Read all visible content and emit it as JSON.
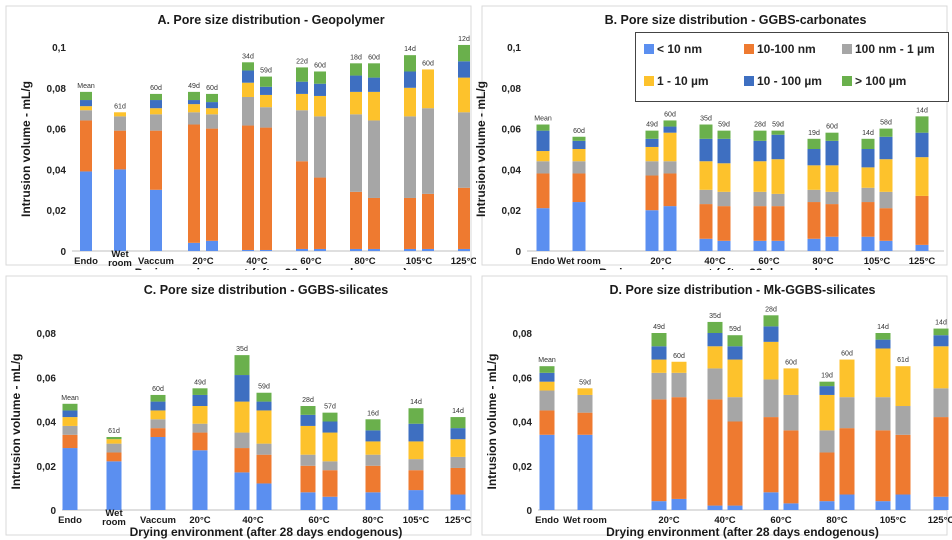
{
  "colors": {
    "lt10nm": "#5b8ff0",
    "10_100nm": "#ee7a30",
    "100nm_1um": "#a6a6a6",
    "1_10um": "#fdc22c",
    "10_100um": "#3e6fc1",
    "gt100um": "#6ab04c"
  },
  "legend": {
    "items": [
      {
        "key": "lt10nm",
        "label": "< 10 nm"
      },
      {
        "key": "10_100nm",
        "label": "10-100 nm"
      },
      {
        "key": "100nm_1um",
        "label": "100 nm - 1 µm"
      },
      {
        "key": "1_10um",
        "label": "1 - 10 µm"
      },
      {
        "key": "10_100um",
        "label": "10 - 100 µm"
      },
      {
        "key": "gt100um",
        "label": "> 100 µm"
      }
    ]
  },
  "chart_data": [
    {
      "type": "bar",
      "title": "A. Pore size distribution - Geopolymer",
      "xlabel": "Drying environment (after 28 days endogenous)",
      "ylabel": "Intrusion volume - mL/g",
      "ylim": [
        0,
        0.1
      ],
      "yticks": [
        "0",
        "0,02",
        "0,04",
        "0,06",
        "0,08",
        "0,1"
      ],
      "stacked": true,
      "groups": [
        {
          "label": "Endo",
          "bars": [
            {
              "label": "Mean",
              "values": [
                0.039,
                0.025,
                0.005,
                0.002,
                0.003,
                0.004
              ]
            }
          ]
        },
        {
          "label": "Wet\nroom",
          "bars": [
            {
              "label": "61d",
              "values": [
                0.04,
                0.019,
                0.007,
                0.002,
                0.0,
                0.0
              ]
            }
          ]
        },
        {
          "label": "Vaccum",
          "bars": [
            {
              "label": "60d",
              "values": [
                0.03,
                0.029,
                0.008,
                0.003,
                0.004,
                0.003
              ]
            }
          ]
        },
        {
          "label": "20°C",
          "bars": [
            {
              "label": "49d",
              "values": [
                0.004,
                0.058,
                0.006,
                0.004,
                0.002,
                0.004
              ]
            },
            {
              "label": "60d",
              "values": [
                0.005,
                0.055,
                0.007,
                0.003,
                0.003,
                0.004
              ]
            }
          ]
        },
        {
          "label": "40°C",
          "bars": [
            {
              "label": "34d",
              "values": [
                0.0005,
                0.061,
                0.014,
                0.007,
                0.006,
                0.004
              ]
            },
            {
              "label": "59d",
              "values": [
                0.0005,
                0.06,
                0.01,
                0.006,
                0.004,
                0.005
              ]
            }
          ]
        },
        {
          "label": "60°C",
          "bars": [
            {
              "label": "22d",
              "values": [
                0.001,
                0.043,
                0.025,
                0.008,
                0.006,
                0.007
              ]
            },
            {
              "label": "60d",
              "values": [
                0.001,
                0.035,
                0.03,
                0.01,
                0.006,
                0.006
              ]
            }
          ]
        },
        {
          "label": "80°C",
          "bars": [
            {
              "label": "18d",
              "values": [
                0.001,
                0.028,
                0.038,
                0.011,
                0.008,
                0.006
              ]
            },
            {
              "label": "60d",
              "values": [
                0.001,
                0.025,
                0.038,
                0.014,
                0.007,
                0.007
              ]
            }
          ]
        },
        {
          "label": "105°C",
          "bars": [
            {
              "label": "14d",
              "values": [
                0.001,
                0.025,
                0.04,
                0.014,
                0.008,
                0.008
              ]
            },
            {
              "label": "60d",
              "values": [
                0.001,
                0.027,
                0.042,
                0.019,
                0.0,
                0.0
              ]
            }
          ]
        },
        {
          "label": "125°C",
          "bars": [
            {
              "label": "12d",
              "values": [
                0.001,
                0.03,
                0.037,
                0.017,
                0.008,
                0.008
              ]
            }
          ]
        }
      ]
    },
    {
      "type": "bar",
      "title": "B. Pore size distribution - GGBS-carbonates",
      "xlabel": "Drying environment (after 28 days endogenous)",
      "ylabel": "Intrusion volume - mL/g",
      "ylim": [
        0,
        0.1
      ],
      "yticks": [
        "0",
        "0,02",
        "0,04",
        "0,06",
        "0,08",
        "0,1"
      ],
      "stacked": true,
      "groups": [
        {
          "label": "Endo",
          "bars": [
            {
              "label": "Mean",
              "values": [
                0.021,
                0.017,
                0.006,
                0.005,
                0.01,
                0.003
              ]
            }
          ]
        },
        {
          "label": "Wet room",
          "bars": [
            {
              "label": "60d",
              "values": [
                0.024,
                0.014,
                0.006,
                0.006,
                0.004,
                0.002
              ]
            }
          ]
        },
        {
          "label": "20°C",
          "bars": [
            {
              "label": "49d",
              "values": [
                0.02,
                0.017,
                0.007,
                0.007,
                0.004,
                0.004
              ]
            },
            {
              "label": "60d",
              "values": [
                0.022,
                0.016,
                0.006,
                0.014,
                0.003,
                0.003
              ]
            }
          ]
        },
        {
          "label": "40°C",
          "bars": [
            {
              "label": "35d",
              "values": [
                0.006,
                0.017,
                0.007,
                0.014,
                0.011,
                0.007
              ]
            },
            {
              "label": "59d",
              "values": [
                0.005,
                0.017,
                0.007,
                0.014,
                0.012,
                0.004
              ]
            }
          ]
        },
        {
          "label": "60°C",
          "bars": [
            {
              "label": "28d",
              "values": [
                0.005,
                0.017,
                0.007,
                0.015,
                0.01,
                0.005
              ]
            },
            {
              "label": "59d",
              "values": [
                0.005,
                0.017,
                0.006,
                0.017,
                0.012,
                0.002
              ]
            }
          ]
        },
        {
          "label": "80°C",
          "bars": [
            {
              "label": "19d",
              "values": [
                0.006,
                0.018,
                0.006,
                0.012,
                0.008,
                0.005
              ]
            },
            {
              "label": "60d",
              "values": [
                0.007,
                0.016,
                0.006,
                0.013,
                0.012,
                0.004
              ]
            }
          ]
        },
        {
          "label": "105°C",
          "bars": [
            {
              "label": "14d",
              "values": [
                0.007,
                0.017,
                0.007,
                0.01,
                0.009,
                0.005
              ]
            },
            {
              "label": "58d",
              "values": [
                0.005,
                0.016,
                0.008,
                0.016,
                0.011,
                0.004
              ]
            }
          ]
        },
        {
          "label": "125°C",
          "bars": [
            {
              "label": "14d",
              "values": [
                0.003,
                0.024,
                0.0,
                0.019,
                0.012,
                0.008
              ]
            }
          ]
        }
      ]
    },
    {
      "type": "bar",
      "title": "C. Pore size distribution - GGBS-silicates",
      "xlabel": "Drying environment (after 28 days endogenous)",
      "ylabel": "Intrusion volume - mL/g",
      "ylim": [
        0,
        0.08
      ],
      "yticks": [
        "0",
        "0,02",
        "0,04",
        "0,06",
        "0,08"
      ],
      "stacked": true,
      "groups": [
        {
          "label": "Endo",
          "bars": [
            {
              "label": "Mean",
              "values": [
                0.028,
                0.006,
                0.004,
                0.004,
                0.003,
                0.003
              ]
            }
          ]
        },
        {
          "label": "Wet\nroom",
          "bars": [
            {
              "label": "61d",
              "values": [
                0.022,
                0.004,
                0.004,
                0.002,
                0.0,
                0.001
              ]
            }
          ]
        },
        {
          "label": "Vaccum",
          "bars": [
            {
              "label": "60d",
              "values": [
                0.033,
                0.004,
                0.004,
                0.004,
                0.004,
                0.003
              ]
            }
          ]
        },
        {
          "label": "20°C",
          "bars": [
            {
              "label": "49d",
              "values": [
                0.027,
                0.008,
                0.004,
                0.008,
                0.005,
                0.003
              ]
            }
          ]
        },
        {
          "label": "40°C",
          "bars": [
            {
              "label": "35d",
              "values": [
                0.017,
                0.011,
                0.007,
                0.014,
                0.012,
                0.009
              ]
            },
            {
              "label": "59d",
              "values": [
                0.012,
                0.013,
                0.005,
                0.015,
                0.004,
                0.004
              ]
            }
          ]
        },
        {
          "label": "60°C",
          "bars": [
            {
              "label": "28d",
              "values": [
                0.008,
                0.012,
                0.005,
                0.013,
                0.005,
                0.004
              ]
            },
            {
              "label": "57d",
              "values": [
                0.006,
                0.012,
                0.004,
                0.013,
                0.005,
                0.004
              ]
            }
          ]
        },
        {
          "label": "80°C",
          "bars": [
            {
              "label": "16d",
              "values": [
                0.008,
                0.012,
                0.005,
                0.006,
                0.005,
                0.005
              ]
            }
          ]
        },
        {
          "label": "105°C",
          "bars": [
            {
              "label": "14d",
              "values": [
                0.009,
                0.009,
                0.005,
                0.008,
                0.008,
                0.007
              ]
            }
          ]
        },
        {
          "label": "125°C",
          "bars": [
            {
              "label": "14d",
              "values": [
                0.007,
                0.012,
                0.005,
                0.008,
                0.005,
                0.005
              ]
            }
          ]
        }
      ]
    },
    {
      "type": "bar",
      "title": "D. Pore size distribution - Mk-GGBS-silicates",
      "xlabel": "Drying environment (after 28 days endogenous)",
      "ylabel": "Intrusion volume - mL/g",
      "ylim": [
        0,
        0.08
      ],
      "yticks": [
        "0",
        "0,02",
        "0,04",
        "0,06",
        "0,08"
      ],
      "stacked": true,
      "groups": [
        {
          "label": "Endo",
          "bars": [
            {
              "label": "Mean",
              "values": [
                0.034,
                0.011,
                0.009,
                0.004,
                0.004,
                0.003
              ]
            }
          ]
        },
        {
          "label": "Wet room",
          "bars": [
            {
              "label": "59d",
              "values": [
                0.034,
                0.01,
                0.008,
                0.003,
                0.0,
                0.0
              ]
            }
          ]
        },
        {
          "label": "20°C",
          "bars": [
            {
              "label": "49d",
              "values": [
                0.004,
                0.046,
                0.012,
                0.006,
                0.006,
                0.006
              ]
            },
            {
              "label": "60d",
              "values": [
                0.005,
                0.046,
                0.011,
                0.005,
                0.0,
                0.0
              ]
            }
          ]
        },
        {
          "label": "40°C",
          "bars": [
            {
              "label": "35d",
              "values": [
                0.002,
                0.048,
                0.014,
                0.01,
                0.006,
                0.005
              ]
            },
            {
              "label": "59d",
              "values": [
                0.002,
                0.038,
                0.011,
                0.017,
                0.006,
                0.005
              ]
            }
          ]
        },
        {
          "label": "60°C",
          "bars": [
            {
              "label": "28d",
              "values": [
                0.008,
                0.034,
                0.017,
                0.017,
                0.007,
                0.005
              ]
            },
            {
              "label": "60d",
              "values": [
                0.003,
                0.033,
                0.016,
                0.012,
                0.0,
                0.0
              ]
            }
          ]
        },
        {
          "label": "80°C",
          "bars": [
            {
              "label": "19d",
              "values": [
                0.004,
                0.022,
                0.01,
                0.016,
                0.004,
                0.002
              ]
            },
            {
              "label": "60d",
              "values": [
                0.007,
                0.03,
                0.014,
                0.017,
                0.0,
                0.0
              ]
            }
          ]
        },
        {
          "label": "105°C",
          "bars": [
            {
              "label": "14d",
              "values": [
                0.004,
                0.032,
                0.015,
                0.022,
                0.004,
                0.003
              ]
            },
            {
              "label": "61d",
              "values": [
                0.007,
                0.027,
                0.013,
                0.018,
                0.0,
                0.0
              ]
            }
          ]
        },
        {
          "label": "125°C",
          "bars": [
            {
              "label": "14d",
              "values": [
                0.006,
                0.036,
                0.013,
                0.019,
                0.005,
                0.003
              ]
            }
          ]
        }
      ]
    }
  ]
}
